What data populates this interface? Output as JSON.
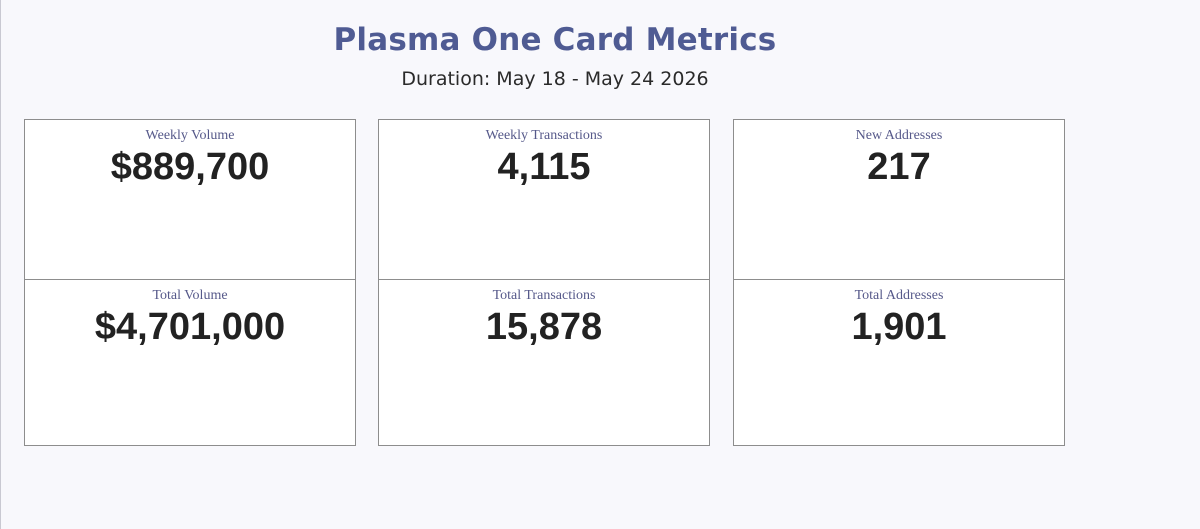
{
  "header": {
    "title": "Plasma One Card Metrics",
    "duration": "Duration: May 18 - May 24 2026"
  },
  "metrics": {
    "weekly_volume": {
      "label": "Weekly Volume",
      "value": "$889,700"
    },
    "weekly_transactions": {
      "label": "Weekly Transactions",
      "value": "4,115"
    },
    "new_addresses": {
      "label": "New Addresses",
      "value": "217"
    },
    "total_volume": {
      "label": "Total Volume",
      "value": "$4,701,000"
    },
    "total_transactions": {
      "label": "Total Transactions",
      "value": "15,878"
    },
    "total_addresses": {
      "label": "Total Addresses",
      "value": "1,901"
    }
  },
  "colors": {
    "title": "#4f5b93",
    "label": "#56598a",
    "value": "#222222",
    "background": "#f8f8fc",
    "card_border": "#8d8d8d"
  }
}
